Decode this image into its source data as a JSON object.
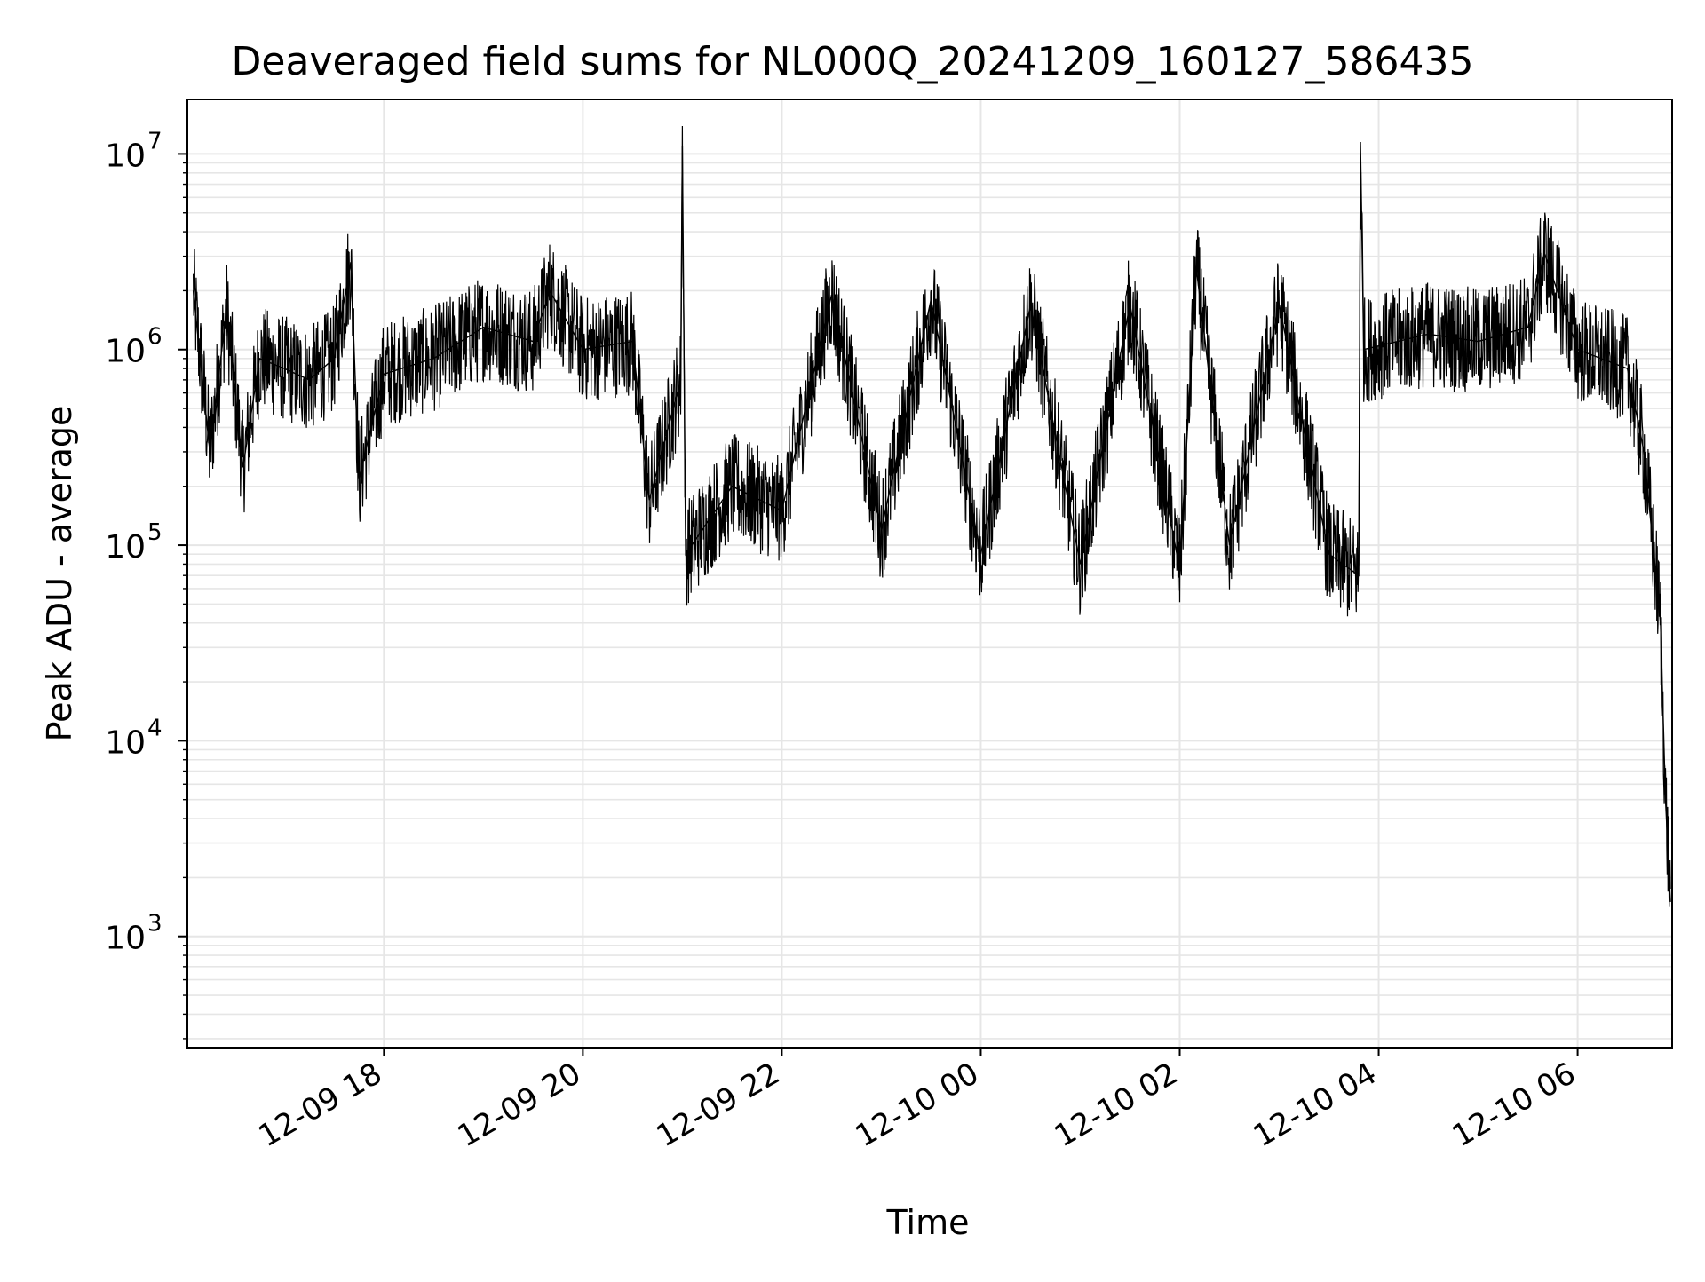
{
  "chart_data": {
    "type": "line",
    "title": "Deaveraged field sums for NL000Q_20241209_160127_586435",
    "xlabel": "Time",
    "ylabel": "Peak ADU - average",
    "yscale": "log",
    "grid": true,
    "xlim": [
      "2024-12-09 16:01:27",
      "2024-12-10 06:57:00"
    ],
    "ylim": [
      270,
      19000000
    ],
    "x_ticks": [
      "12-09 18",
      "12-09 20",
      "12-09 22",
      "12-10 00",
      "12-10 02",
      "12-10 04",
      "12-10 06"
    ],
    "y_ticks": [
      {
        "base": "10",
        "exp": "3",
        "value": 1000
      },
      {
        "base": "10",
        "exp": "4",
        "value": 10000
      },
      {
        "base": "10",
        "exp": "5",
        "value": 100000
      },
      {
        "base": "10",
        "exp": "6",
        "value": 1000000
      },
      {
        "base": "10",
        "exp": "7",
        "value": 10000000
      }
    ],
    "series": [
      {
        "color": "#000000",
        "points": [
          [
            "2024-12-09 16:05",
            2000000
          ],
          [
            "2024-12-09 16:15",
            300000
          ],
          [
            "2024-12-09 16:25",
            1600000
          ],
          [
            "2024-12-09 16:35",
            250000
          ],
          [
            "2024-12-09 16:45",
            900000
          ],
          [
            "2024-12-09 17:00",
            800000
          ],
          [
            "2024-12-09 17:15",
            700000
          ],
          [
            "2024-12-09 17:30",
            900000
          ],
          [
            "2024-12-09 17:40",
            2800000
          ],
          [
            "2024-12-09 17:45",
            220000
          ],
          [
            "2024-12-09 18:00",
            750000
          ],
          [
            "2024-12-09 18:30",
            900000
          ],
          [
            "2024-12-09 19:00",
            1300000
          ],
          [
            "2024-12-09 19:30",
            1100000
          ],
          [
            "2024-12-09 19:40",
            2000000
          ],
          [
            "2024-12-09 20:00",
            1000000
          ],
          [
            "2024-12-09 20:30",
            1100000
          ],
          [
            "2024-12-09 20:40",
            170000
          ],
          [
            "2024-12-09 20:59",
            700000
          ],
          [
            "2024-12-09 21:00",
            11000000
          ],
          [
            "2024-12-09 21:02",
            90000
          ],
          [
            "2024-12-09 21:30",
            200000
          ],
          [
            "2024-12-09 22:00",
            150000
          ],
          [
            "2024-12-09 22:30",
            1900000
          ],
          [
            "2024-12-09 23:00",
            120000
          ],
          [
            "2024-12-09 23:30",
            1800000
          ],
          [
            "2024-12-10 00:00",
            90000
          ],
          [
            "2024-12-10 00:30",
            1700000
          ],
          [
            "2024-12-10 01:00",
            80000
          ],
          [
            "2024-12-10 01:30",
            1700000
          ],
          [
            "2024-12-10 02:00",
            75000
          ],
          [
            "2024-12-10 02:10",
            2600000
          ],
          [
            "2024-12-10 02:30",
            100000
          ],
          [
            "2024-12-10 03:00",
            1700000
          ],
          [
            "2024-12-10 03:30",
            90000
          ],
          [
            "2024-12-10 03:48",
            70000
          ],
          [
            "2024-12-10 03:49",
            11500000
          ],
          [
            "2024-12-10 03:51",
            1000000
          ],
          [
            "2024-12-10 04:30",
            1200000
          ],
          [
            "2024-12-10 05:00",
            1100000
          ],
          [
            "2024-12-10 05:30",
            1300000
          ],
          [
            "2024-12-10 05:40",
            3100000
          ],
          [
            "2024-12-10 06:00",
            1000000
          ],
          [
            "2024-12-10 06:30",
            800000
          ],
          [
            "2024-12-10 06:40",
            300000
          ],
          [
            "2024-12-10 06:50",
            40000
          ],
          [
            "2024-12-10 06:53",
            5000
          ],
          [
            "2024-12-10 06:56",
            1500
          ]
        ]
      }
    ]
  }
}
